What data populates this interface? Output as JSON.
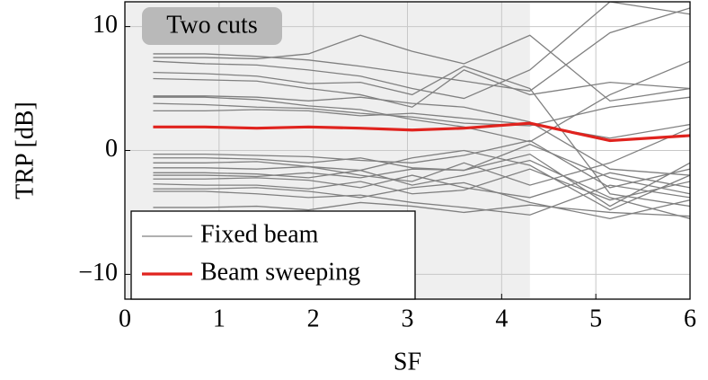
{
  "chart_data": {
    "type": "line",
    "xlabel": "SF",
    "ylabel": "TRP [dB]",
    "annotation": "Two cuts",
    "shaded_xlim": [
      0,
      4.3
    ],
    "x": [
      0.3,
      0.85,
      1.4,
      1.95,
      2.5,
      3.05,
      3.6,
      4.3,
      5.15,
      6
    ],
    "series": [
      {
        "name": "Fixed beam",
        "color": "#808080",
        "lines": [
          [
            7.8,
            7.8,
            7.6,
            7.3,
            6.8,
            6.2,
            5.6,
            4.8,
            9.5,
            11.5
          ],
          [
            7.5,
            7.5,
            7.4,
            7.8,
            9.3,
            8.0,
            7.0,
            9.3,
            4.0,
            5.0
          ],
          [
            7.2,
            7.0,
            6.9,
            6.5,
            6.0,
            5.0,
            4.2,
            6.5,
            12,
            11
          ],
          [
            6.3,
            6.2,
            6.0,
            5.4,
            5.5,
            4.5,
            6.8,
            5.0,
            -3.5,
            -4.5
          ],
          [
            5.8,
            5.7,
            5.6,
            5.0,
            4.5,
            3.5,
            6.5,
            4.5,
            5.5,
            5.0
          ],
          [
            4.4,
            4.4,
            4.3,
            4.0,
            4.3,
            3.8,
            3.5,
            2.3,
            -1.5,
            -2
          ],
          [
            4.3,
            4.3,
            4.1,
            3.6,
            3.3,
            2.5,
            1.9,
            0.7,
            4.5,
            7.2
          ],
          [
            3.8,
            3.7,
            3.5,
            3.4,
            3.0,
            2.7,
            2.2,
            2.0,
            3.5,
            4.3
          ],
          [
            3.2,
            3.2,
            3.3,
            3.2,
            2.8,
            3.0,
            2.6,
            2.1,
            1.0,
            2.1
          ],
          [
            -0.3,
            -0.3,
            -0.4,
            -0.5,
            -0.8,
            -1.0,
            -0.4,
            0.8,
            -3.0,
            -1.5
          ],
          [
            -0.6,
            -0.6,
            -0.7,
            -1.0,
            -0.6,
            -1.4,
            -1.6,
            0.5,
            -2.2,
            -3.5
          ],
          [
            -1.0,
            -1.0,
            -0.9,
            -1.3,
            -1.6,
            -0.6,
            0.0,
            -1.2,
            -4.8,
            -2.0
          ],
          [
            -1.4,
            -1.4,
            -1.5,
            -1.3,
            -2.0,
            -2.5,
            -1.0,
            -2.8,
            -1.0,
            1.8
          ],
          [
            -1.8,
            -1.8,
            -1.9,
            -2.2,
            -1.6,
            -2.8,
            -2.0,
            -0.8,
            -3.8,
            -5.5
          ],
          [
            -2.3,
            -2.3,
            -2.2,
            -2.4,
            -3.0,
            -2.0,
            -3.0,
            -3.8,
            -1.8,
            -3.0
          ],
          [
            -2.7,
            -2.8,
            -2.8,
            -3.1,
            -2.5,
            -3.5,
            -3.2,
            -1.5,
            -4.0,
            -2.5
          ],
          [
            -3.1,
            -3.1,
            -3.0,
            -3.3,
            -3.8,
            -3.0,
            -2.6,
            -4.2,
            -5.5,
            -4.0
          ],
          [
            -3.3,
            -3.3,
            -3.5,
            -3.8,
            -3.6,
            -4.2,
            -4.6,
            -5.2,
            -2.8,
            -3.8
          ],
          [
            -4.6,
            -4.6,
            -4.5,
            -4.8,
            -4.2,
            -4.5,
            -5.0,
            -4.4,
            -5.0,
            -5.3
          ],
          [
            -2.0,
            -2.0,
            -2.1,
            -1.8,
            -2.2,
            -1.5,
            -1.6,
            -0.3,
            -4.5,
            -1.0
          ]
        ]
      },
      {
        "name": "Beam sweeping",
        "color": "#e0231e",
        "values": [
          1.9,
          1.9,
          1.8,
          1.9,
          1.8,
          1.65,
          1.8,
          2.2,
          0.8,
          1.2
        ]
      }
    ],
    "xlim": [
      0,
      6
    ],
    "xticks": [
      0,
      1,
      2,
      3,
      4,
      5,
      6
    ],
    "ylim": [
      -12,
      12
    ],
    "yticks": [
      {
        "value": -10,
        "label": "−10"
      },
      0,
      10
    ],
    "grid": true,
    "legend": "lower left"
  }
}
